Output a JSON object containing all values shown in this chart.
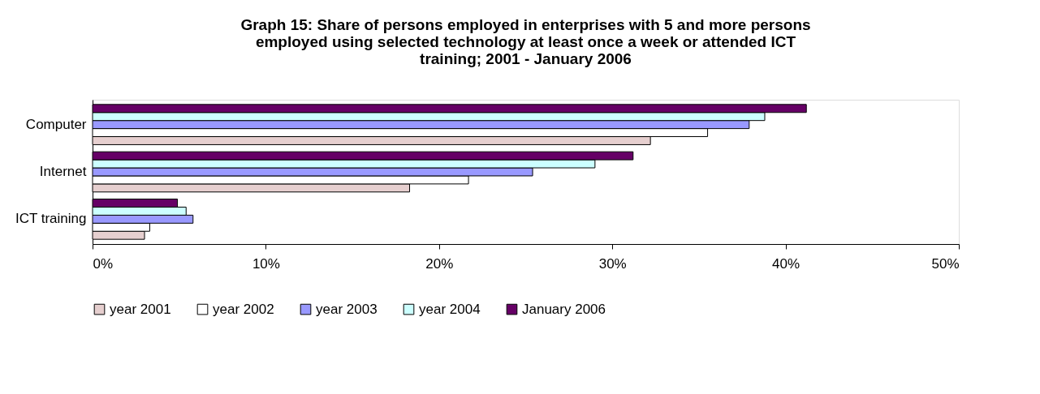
{
  "chart_data": {
    "type": "bar",
    "orientation": "horizontal",
    "title": [
      "Graph 15: Share of persons employed in enterprises with 5 and more persons",
      "employed using selected technology at least once a week or attended ICT",
      "training; 2001 - January 2006"
    ],
    "categories": [
      "Computer",
      "Internet",
      "ICT training"
    ],
    "series": [
      {
        "name": "year 2001",
        "color": "#e6cfcf",
        "values": [
          32.2,
          18.3,
          3.0
        ]
      },
      {
        "name": "year 2002",
        "color": "#ffffff",
        "values": [
          35.5,
          21.7,
          3.3
        ]
      },
      {
        "name": "year 2003",
        "color": "#9999ff",
        "values": [
          37.9,
          25.4,
          5.8
        ]
      },
      {
        "name": "year 2004",
        "color": "#ccffff",
        "values": [
          38.8,
          29.0,
          5.4
        ]
      },
      {
        "name": "January 2006",
        "color": "#660066",
        "values": [
          41.2,
          31.2,
          4.9
        ]
      }
    ],
    "xlim": [
      0,
      50
    ],
    "xticks": [
      {
        "value": 0,
        "label": "0%"
      },
      {
        "value": 10,
        "label": "10%"
      },
      {
        "value": 20,
        "label": "20%"
      },
      {
        "value": 30,
        "label": "30%"
      },
      {
        "value": 40,
        "label": "40%"
      },
      {
        "value": 50,
        "label": "50%"
      }
    ],
    "grid": false,
    "legend": "bottom"
  }
}
